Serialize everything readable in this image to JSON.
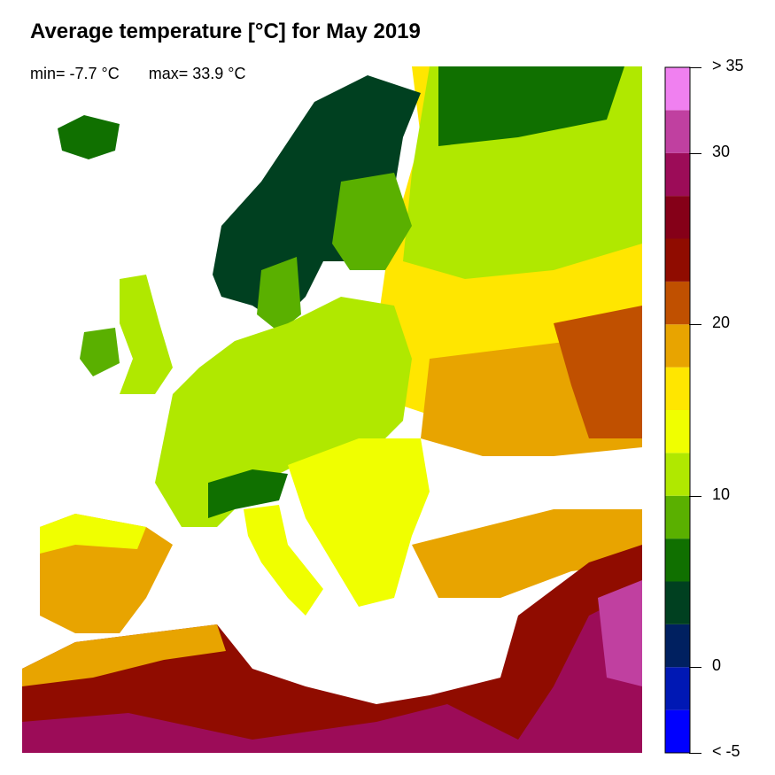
{
  "title": "Average temperature [°C] for May 2019",
  "stats": {
    "min": "min= -7.7 °C",
    "max": "max= 33.9 °C"
  },
  "legend": {
    "breaks": [
      -5,
      -2.5,
      0,
      2.5,
      5,
      7.5,
      10,
      12.5,
      15,
      17.5,
      20,
      22.5,
      25,
      27.5,
      30,
      32.5,
      35
    ],
    "colors": [
      "#0000ff",
      "#0018b4",
      "#002060",
      "#004020",
      "#107000",
      "#5ab000",
      "#b0e800",
      "#f0ff00",
      "#ffe600",
      "#e8a400",
      "#c05000",
      "#900c00",
      "#850018",
      "#9c0c58",
      "#c040a0",
      "#f080f0"
    ],
    "tick_labels": [
      {
        "value": 35,
        "label": "> 35"
      },
      {
        "value": 30,
        "label": "30"
      },
      {
        "value": 20,
        "label": "20"
      },
      {
        "value": 10,
        "label": "10"
      },
      {
        "value": 0,
        "label": "0"
      },
      {
        "value": -5,
        "label": "< -5"
      }
    ]
  }
}
